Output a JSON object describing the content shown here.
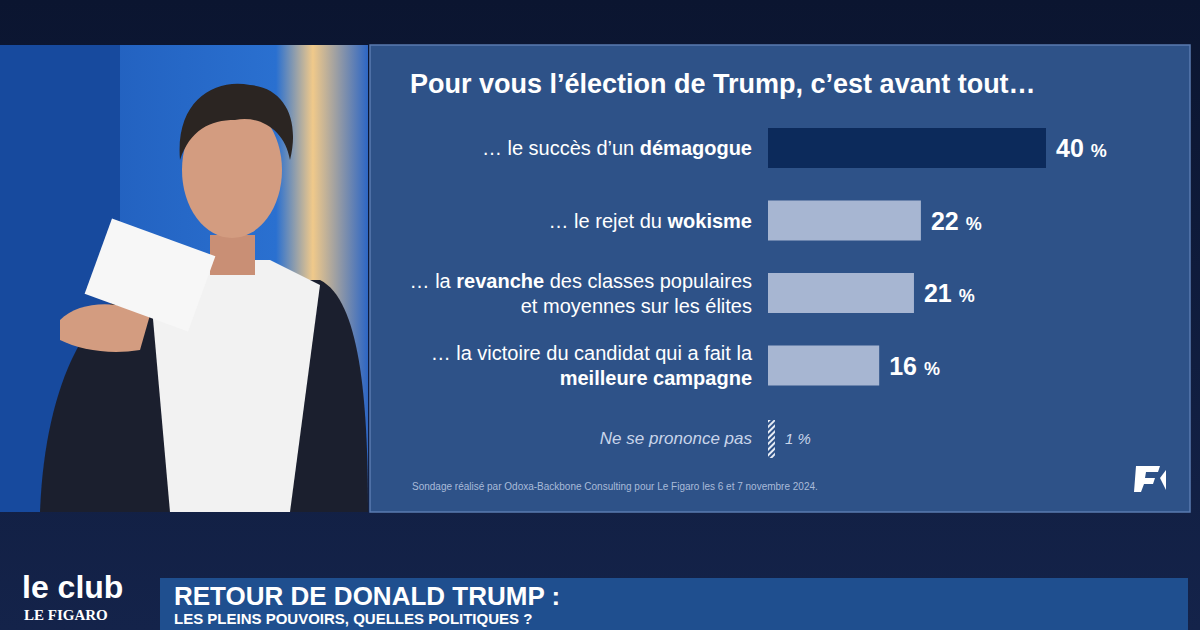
{
  "chart_data": {
    "type": "bar",
    "orientation": "horizontal",
    "title": "Pour vous l’élection de Trump, c’est avant tout…",
    "categories": [
      "… le succès d’un démagogue",
      "… le rejet du wokisme",
      "… la revanche des classes populaires et moyennes sur les élites",
      "… la victoire du candidat qui a fait la meilleure campagne",
      "Ne se prononce pas"
    ],
    "values": [
      40,
      22,
      21,
      16,
      1
    ],
    "value_labels": [
      "40 %",
      "22 %",
      "21 %",
      "16 %",
      "1 %"
    ],
    "colors": [
      "#0c2a5b",
      "#a7b6d2",
      "#a7b6d2",
      "#a7b6d2",
      "#e6ecf5"
    ],
    "xlim": [
      0,
      40
    ],
    "tick_labels": false,
    "data_labels": true,
    "source": "Sondage réalisé par Odoxa-Backbone Consulting pour Le Figaro les 6 et 7 novembre 2024."
  },
  "bold_words": [
    "démagogue",
    "wokisme",
    "revanche",
    "meilleure campagne"
  ],
  "show": {
    "logo_top": "le club",
    "logo_bottom": "LE FIGARO",
    "headline": "RETOUR DE DONALD TRUMP :",
    "subheadline": "LES PLEINS POUVOIRS, QUELLES POLITIQUES ?"
  }
}
